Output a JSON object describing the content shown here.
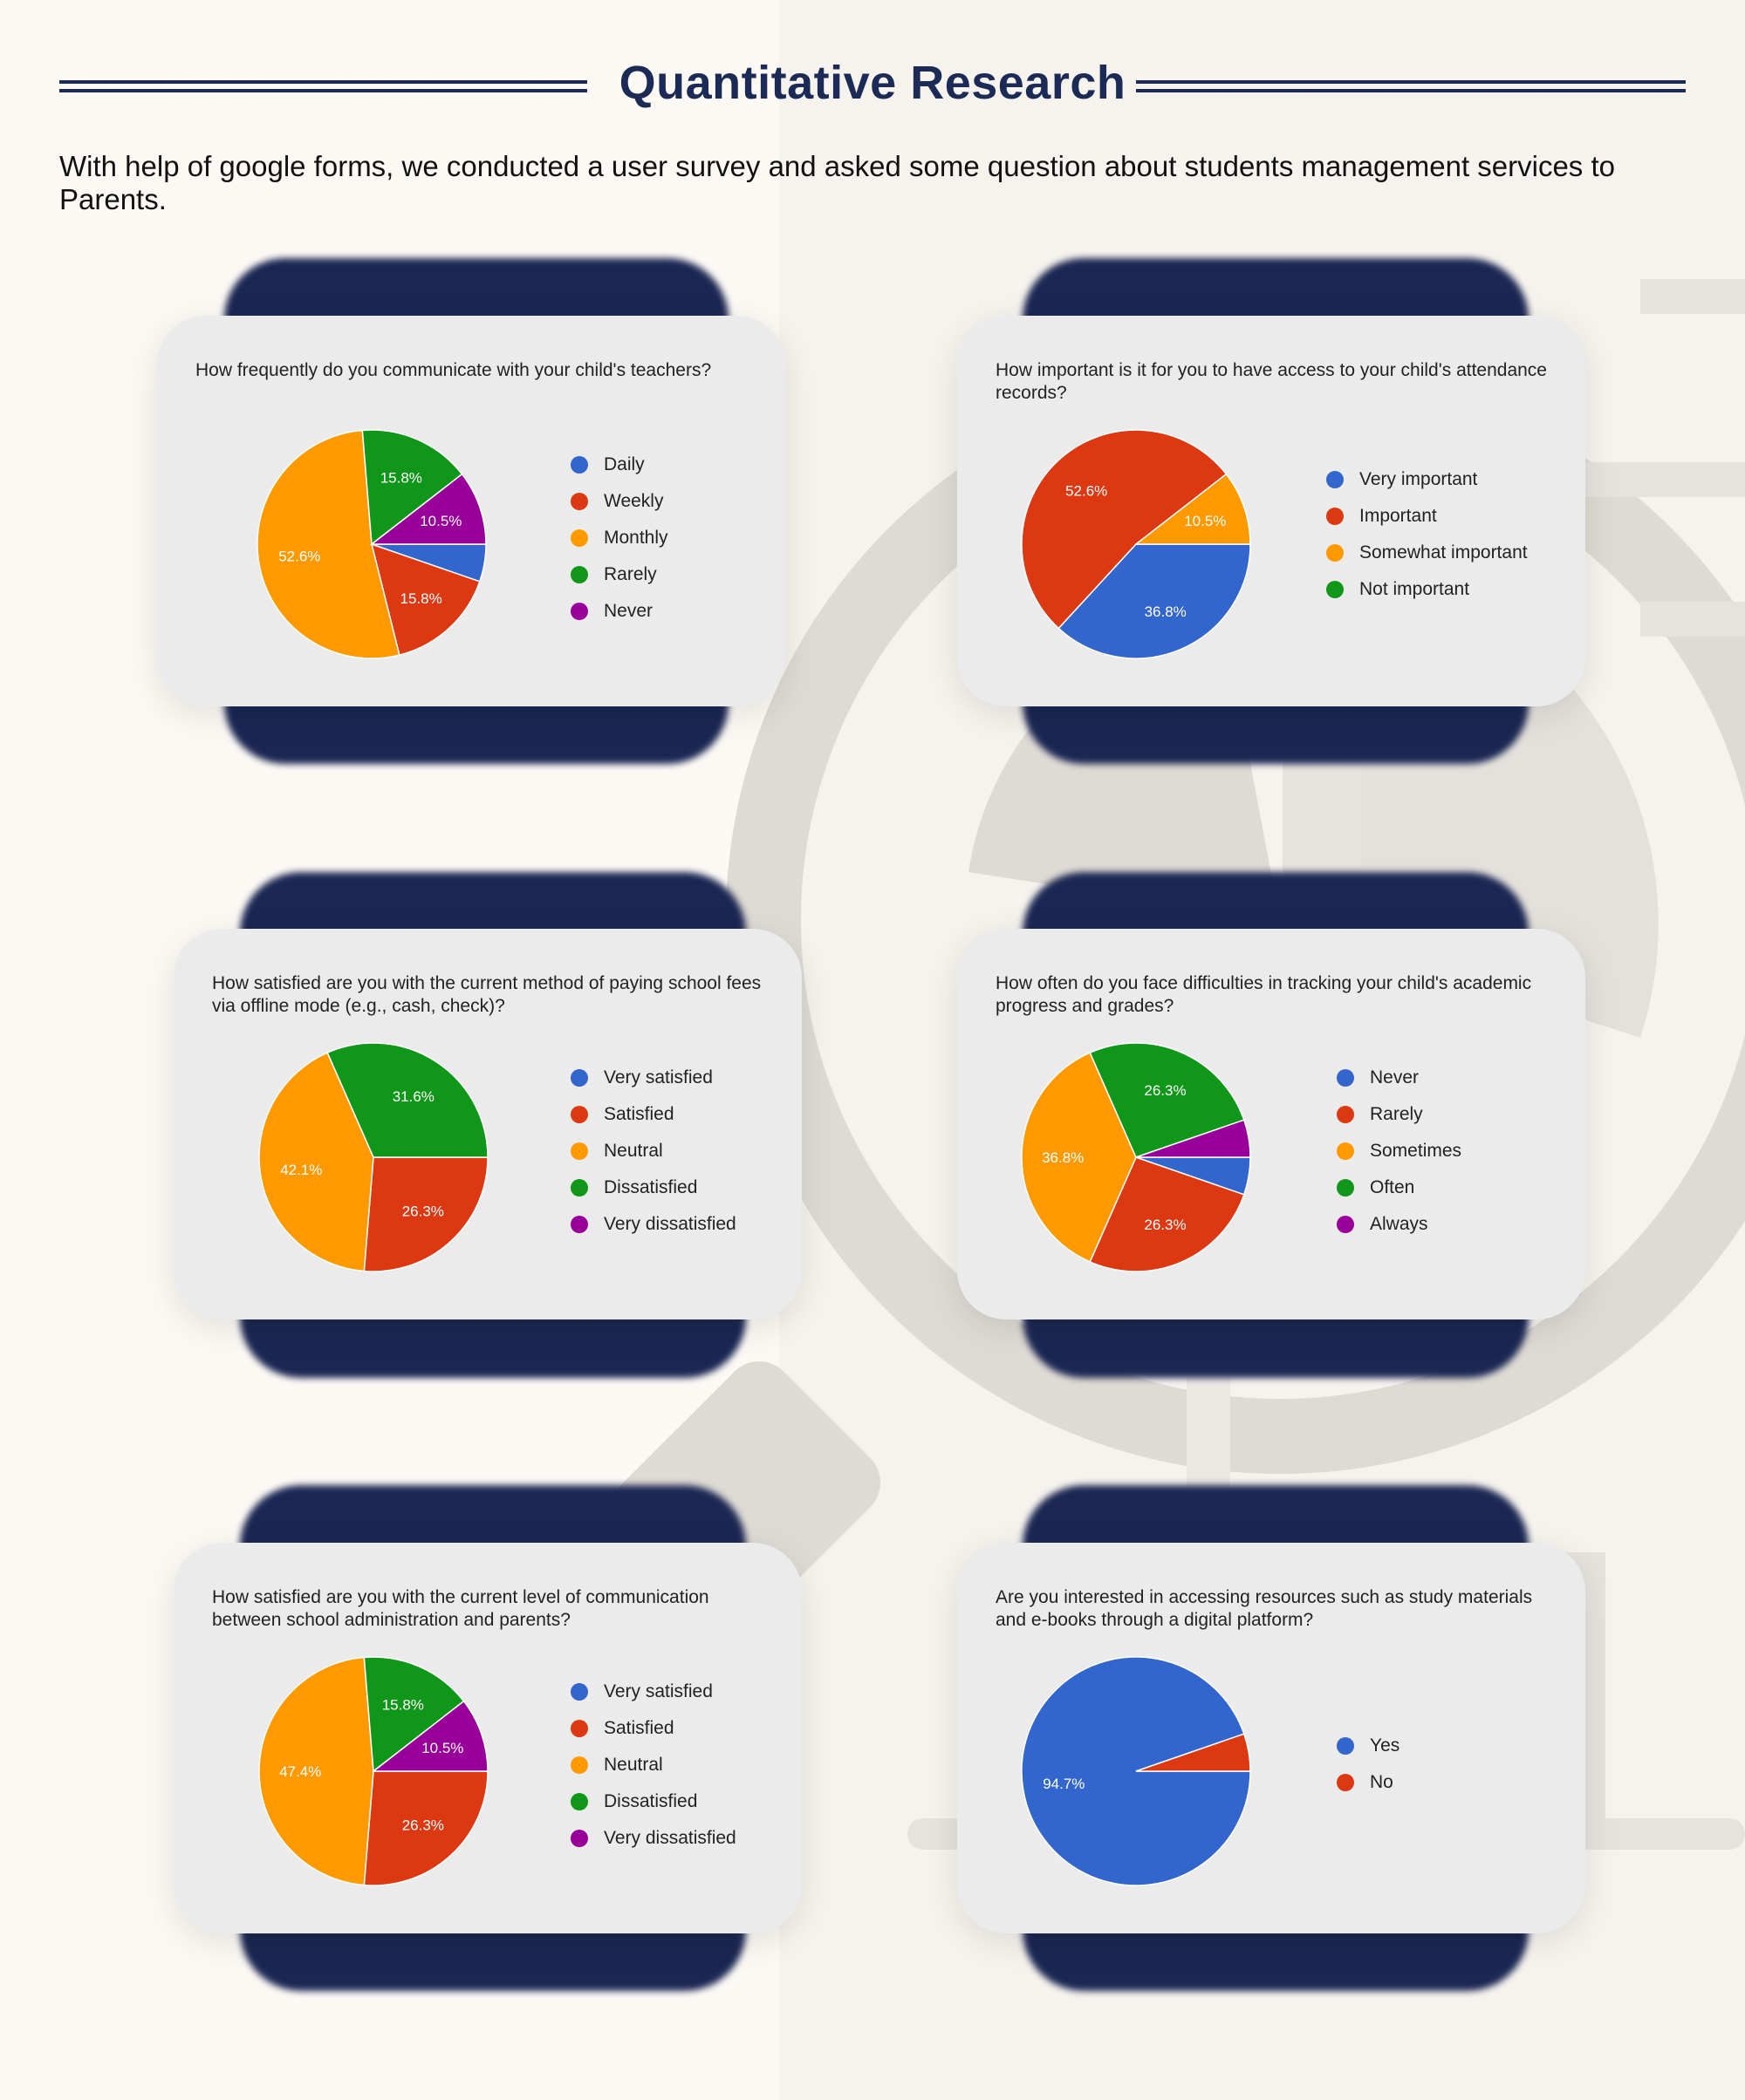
{
  "title": "Quantitative Research",
  "intro": "With help of google forms, we conducted a user survey and asked some question about students management services to Parents.",
  "colors": {
    "blue": "#3366cc",
    "red": "#dc3912",
    "orange": "#ff9900",
    "green": "#109618",
    "purple": "#990099",
    "navy": "#1c2a56"
  },
  "chart_data": [
    {
      "type": "pie",
      "title": "How frequently do you communicate with your child's teachers?",
      "labels": [
        "Daily",
        "Weekly",
        "Monthly",
        "Rarely",
        "Never"
      ],
      "values": [
        5.3,
        15.8,
        52.6,
        15.8,
        10.5
      ],
      "data_labels": [
        "",
        "15.8%",
        "52.6%",
        "15.8%",
        "10.5%"
      ],
      "colors": [
        "#3366cc",
        "#dc3912",
        "#ff9900",
        "#109618",
        "#990099"
      ],
      "legend": "right"
    },
    {
      "type": "pie",
      "title": "How important is it for you to have access to your child's attendance records?",
      "labels": [
        "Very important",
        "Important",
        "Somewhat important",
        "Not important"
      ],
      "values": [
        36.8,
        52.6,
        10.5,
        0
      ],
      "data_labels": [
        "36.8%",
        "52.6%",
        "10.5%",
        ""
      ],
      "colors": [
        "#3366cc",
        "#dc3912",
        "#ff9900",
        "#109618"
      ],
      "legend": "right"
    },
    {
      "type": "pie",
      "title": "How satisfied are you with the current method of paying school fees via offline mode (e.g., cash, check)?",
      "labels": [
        "Very satisfied",
        "Satisfied",
        "Neutral",
        "Dissatisfied",
        "Very dissatisfied"
      ],
      "values": [
        0,
        26.3,
        42.1,
        31.6,
        0
      ],
      "data_labels": [
        "",
        "26.3%",
        "42.1%",
        "31.6%",
        ""
      ],
      "colors": [
        "#3366cc",
        "#dc3912",
        "#ff9900",
        "#109618",
        "#990099"
      ],
      "legend": "right"
    },
    {
      "type": "pie",
      "title": "How often do you face difficulties in tracking your child's academic progress and grades?",
      "labels": [
        "Never",
        "Rarely",
        "Sometimes",
        "Often",
        "Always"
      ],
      "values": [
        5.3,
        26.3,
        36.8,
        26.3,
        5.3
      ],
      "data_labels": [
        "",
        "26.3%",
        "36.8%",
        "26.3%",
        ""
      ],
      "colors": [
        "#3366cc",
        "#dc3912",
        "#ff9900",
        "#109618",
        "#990099"
      ],
      "legend": "right"
    },
    {
      "type": "pie",
      "title": "How satisfied are you with the current level of communication between school administration and parents?",
      "labels": [
        "Very satisfied",
        "Satisfied",
        "Neutral",
        "Dissatisfied",
        "Very dissatisfied"
      ],
      "values": [
        0,
        26.3,
        47.4,
        15.8,
        10.5
      ],
      "data_labels": [
        "",
        "26.3%",
        "47.4%",
        "15.8%",
        "10.5%"
      ],
      "colors": [
        "#3366cc",
        "#dc3912",
        "#ff9900",
        "#109618",
        "#990099"
      ],
      "legend": "right"
    },
    {
      "type": "pie",
      "title": "Are you interested in accessing resources such as study materials and e-books through a digital platform?",
      "labels": [
        "Yes",
        "No"
      ],
      "values": [
        94.7,
        5.3
      ],
      "data_labels": [
        "94.7%",
        ""
      ],
      "colors": [
        "#3366cc",
        "#dc3912"
      ],
      "legend": "right"
    }
  ]
}
